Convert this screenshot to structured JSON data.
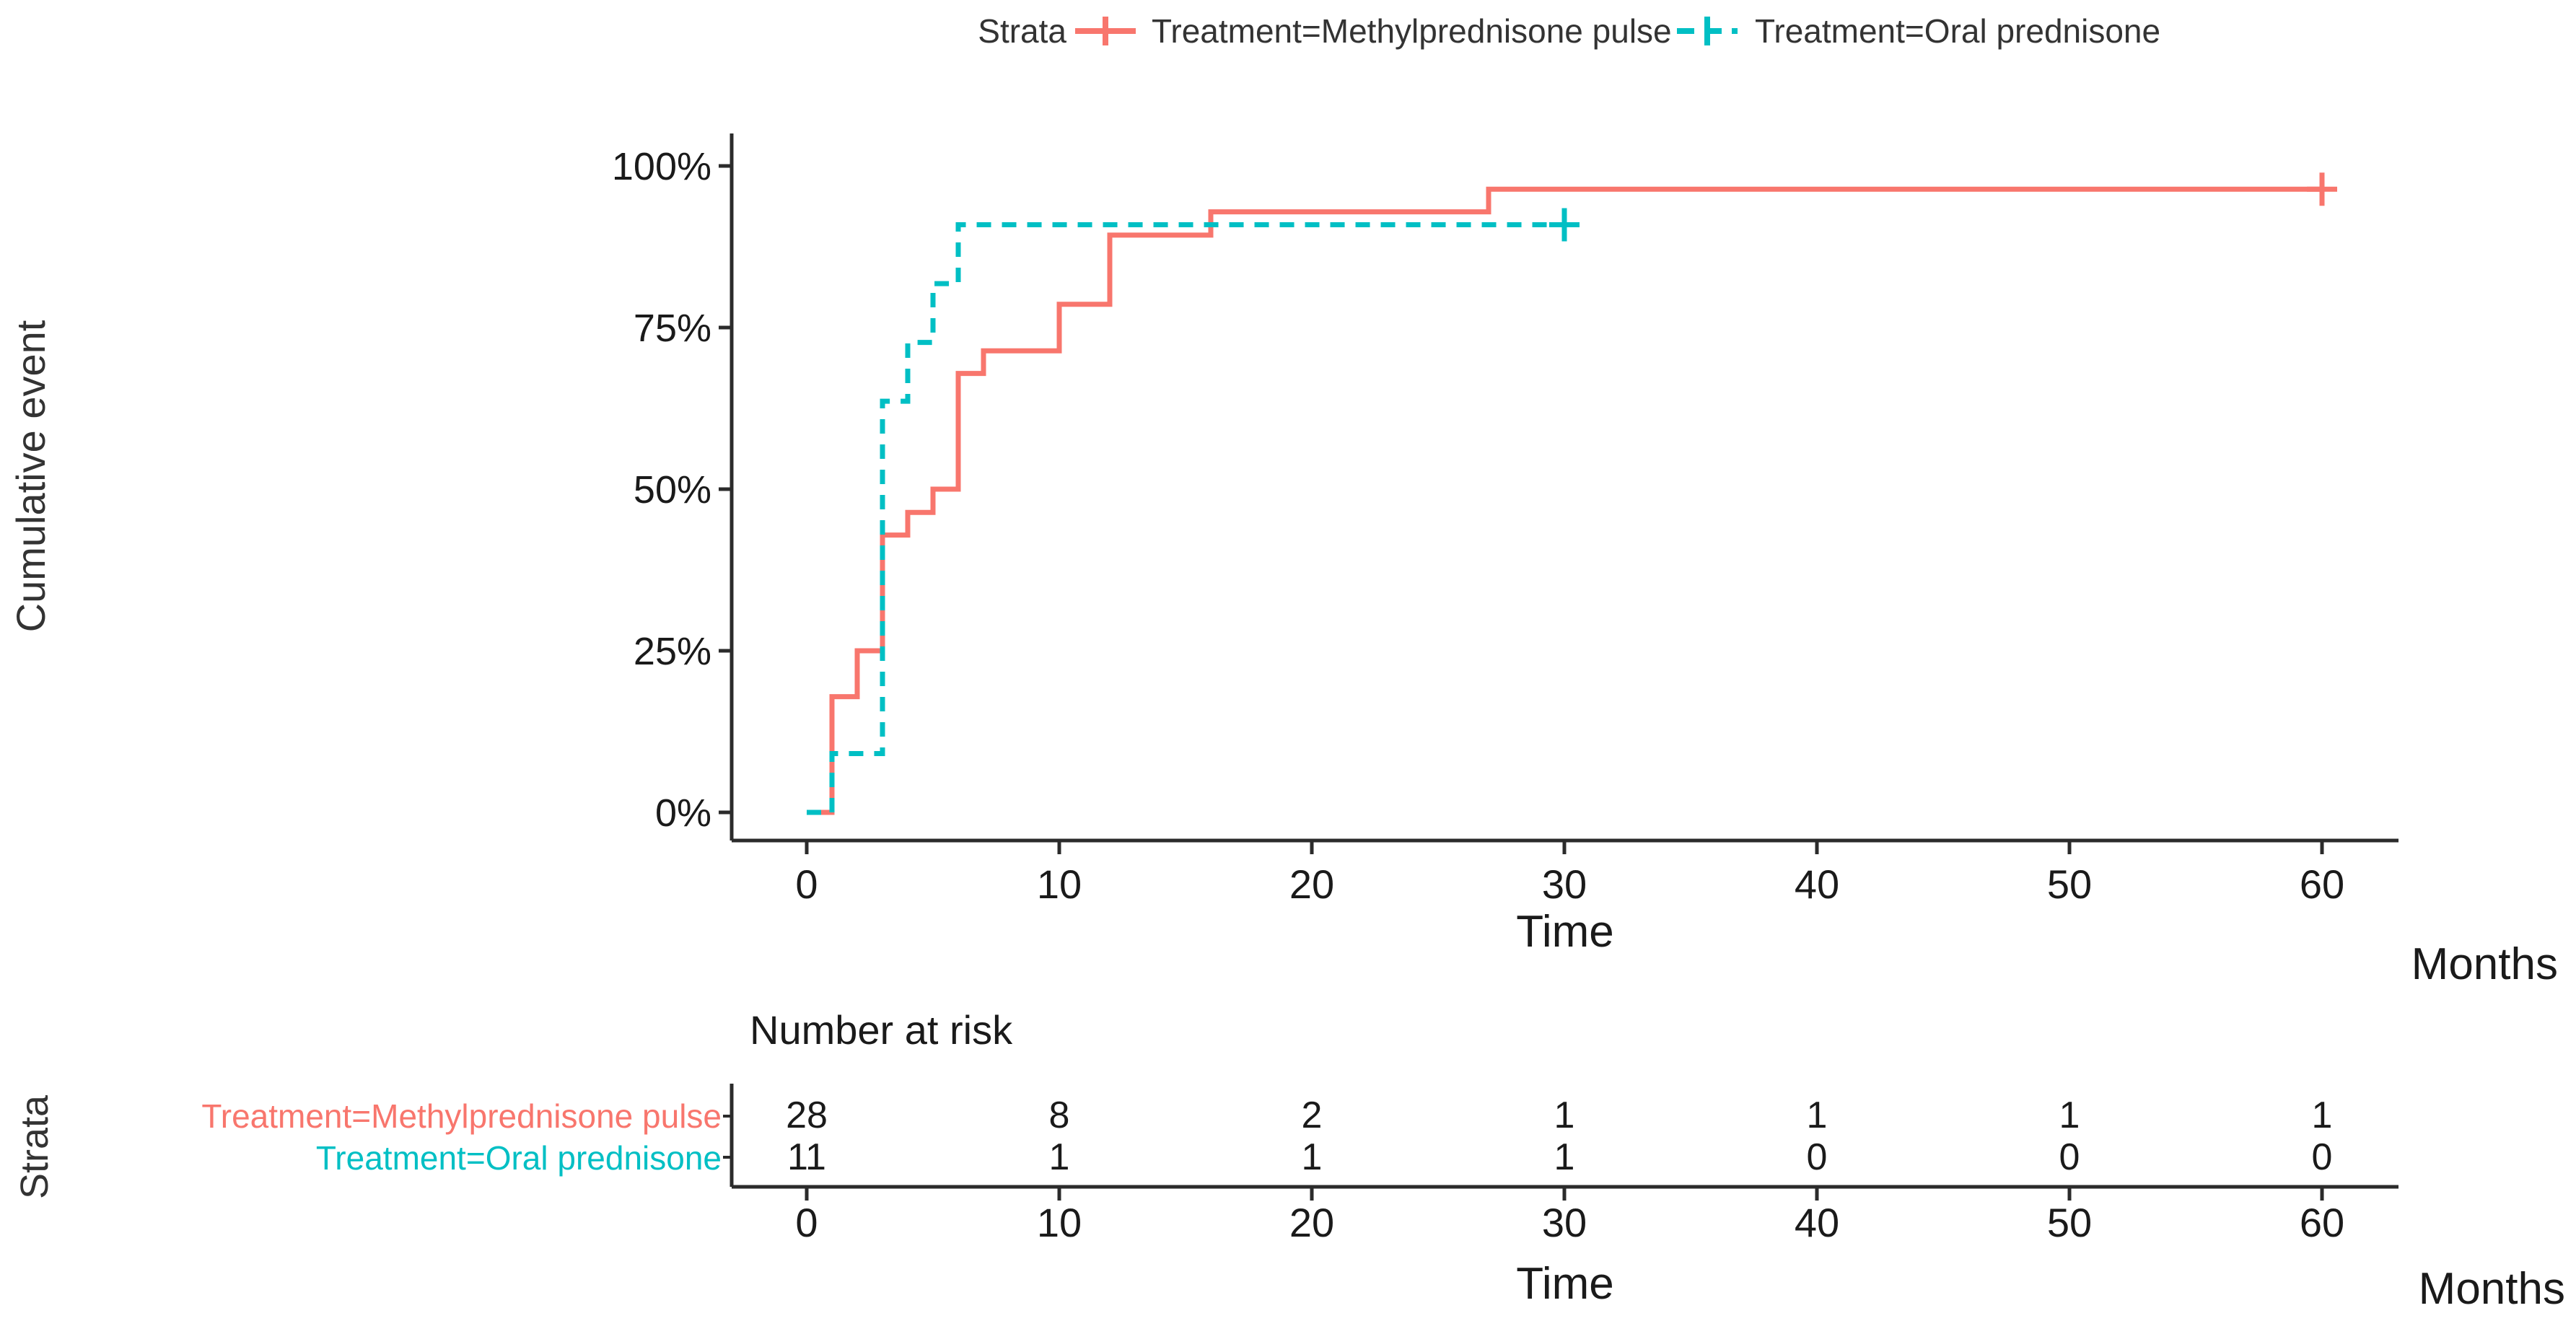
{
  "legend": {
    "title": "Strata",
    "items": [
      {
        "label": "Treatment=Methylprednisone pulse",
        "color": "#F8766D",
        "dashed": false
      },
      {
        "label": "Treatment=Oral prednisone",
        "color": "#00BFC4",
        "dashed": true
      }
    ]
  },
  "chart_data": {
    "type": "line",
    "subtype": "cumulative-incidence-step",
    "title": "",
    "xlabel": "Time",
    "x_unit": "Months",
    "ylabel": "Cumulative event",
    "xlim": [
      0,
      60
    ],
    "x_ticks": [
      0,
      10,
      20,
      30,
      40,
      50,
      60
    ],
    "ylim": [
      0,
      100
    ],
    "y_ticks": [
      {
        "value": 0,
        "label": "0%"
      },
      {
        "value": 25,
        "label": "25%"
      },
      {
        "value": 50,
        "label": "50%"
      },
      {
        "value": 75,
        "label": "75%"
      },
      {
        "value": 100,
        "label": "100%"
      }
    ],
    "grid": false,
    "legend_position": "top",
    "series": [
      {
        "name": "Treatment=Methylprednisone pulse",
        "color": "#F8766D",
        "style": "solid",
        "n": 28,
        "steps": [
          [
            0,
            0
          ],
          [
            1,
            17.9
          ],
          [
            2,
            25
          ],
          [
            3,
            42.9
          ],
          [
            4,
            46.4
          ],
          [
            5,
            50
          ],
          [
            6,
            67.9
          ],
          [
            7,
            71.4
          ],
          [
            10,
            78.6
          ],
          [
            12,
            89.3
          ],
          [
            16,
            92.9
          ],
          [
            27,
            96.4
          ]
        ],
        "end_time": 60,
        "censor_marks": [
          {
            "time": 60,
            "value": 96.4
          }
        ]
      },
      {
        "name": "Treatment=Oral prednisone",
        "color": "#00BFC4",
        "style": "dashed",
        "n": 11,
        "steps": [
          [
            0,
            0
          ],
          [
            1,
            9.1
          ],
          [
            3,
            63.6
          ],
          [
            4,
            72.7
          ],
          [
            5,
            81.8
          ],
          [
            6,
            90.9
          ]
        ],
        "end_time": 30,
        "censor_marks": [
          {
            "time": 30,
            "value": 90.9
          }
        ]
      }
    ]
  },
  "risk_table": {
    "title": "Number at risk",
    "axis_label": "Strata",
    "times": [
      0,
      10,
      20,
      30,
      40,
      50,
      60
    ],
    "rows": [
      {
        "label": "Treatment=Methylprednisone pulse",
        "color": "#F8766D",
        "values": [
          28,
          8,
          2,
          1,
          1,
          1,
          1
        ]
      },
      {
        "label": "Treatment=Oral prednisone",
        "color": "#00BFC4",
        "values": [
          11,
          1,
          1,
          1,
          0,
          0,
          0
        ]
      }
    ],
    "xlabel": "Time",
    "x_unit": "Months"
  },
  "colors": {
    "axis": "#2b2b2b",
    "tick_text": "#1a1a1a",
    "label_text": "#333333"
  }
}
